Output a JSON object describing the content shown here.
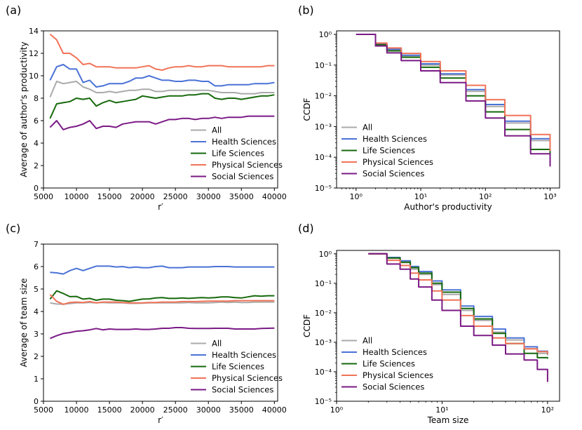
{
  "chart_data": [
    {
      "panel": "(a)",
      "type": "line",
      "xscale": "linear",
      "yscale": "linear",
      "xlabel": "r′",
      "ylabel": "Average of author's productivity",
      "xlim": [
        5000,
        40500
      ],
      "ylim": [
        0,
        14
      ],
      "xticks": [
        5000,
        10000,
        15000,
        20000,
        25000,
        30000,
        35000,
        40000
      ],
      "xtick_labels": [
        "5000",
        "10000",
        "15000",
        "20000",
        "25000",
        "30000",
        "35000",
        "40000"
      ],
      "yticks": [
        0,
        2,
        4,
        6,
        8,
        10,
        12,
        14
      ],
      "ytick_labels": [
        "0",
        "2",
        "4",
        "6",
        "8",
        "10",
        "12",
        "14"
      ],
      "legend_position": "lower-right",
      "x": [
        6000,
        7000,
        8000,
        9000,
        10000,
        11000,
        12000,
        13000,
        14000,
        15000,
        16000,
        17000,
        18000,
        19000,
        20000,
        21000,
        22000,
        23000,
        24000,
        25000,
        26000,
        27000,
        28000,
        29000,
        30000,
        31000,
        32000,
        33000,
        34000,
        35000,
        36000,
        37000,
        38000,
        39000,
        40000
      ],
      "series": [
        {
          "name": "All",
          "color": "#aaaaaa",
          "values": [
            8.1,
            9.5,
            9.3,
            9.4,
            9.5,
            9.0,
            8.8,
            8.5,
            8.5,
            8.6,
            8.5,
            8.6,
            8.7,
            8.7,
            8.8,
            8.8,
            8.6,
            8.6,
            8.7,
            8.7,
            8.7,
            8.7,
            8.7,
            8.7,
            8.7,
            8.6,
            8.5,
            8.5,
            8.5,
            8.4,
            8.4,
            8.4,
            8.5,
            8.5,
            8.5
          ]
        },
        {
          "name": "Health Sciences",
          "color": "#4a72d6",
          "values": [
            9.6,
            10.8,
            11.0,
            10.6,
            10.6,
            9.4,
            9.6,
            9.0,
            9.1,
            9.3,
            9.3,
            9.3,
            9.5,
            9.8,
            9.8,
            10.0,
            9.8,
            9.6,
            9.6,
            9.5,
            9.5,
            9.6,
            9.6,
            9.5,
            9.5,
            9.1,
            9.1,
            9.2,
            9.2,
            9.2,
            9.2,
            9.3,
            9.3,
            9.3,
            9.4
          ]
        },
        {
          "name": "Life Sciences",
          "color": "#16690c",
          "values": [
            6.2,
            7.5,
            7.6,
            7.7,
            8.0,
            7.9,
            8.0,
            7.3,
            7.6,
            7.8,
            7.6,
            7.7,
            7.8,
            7.9,
            8.2,
            8.1,
            8.0,
            8.1,
            8.2,
            8.2,
            8.2,
            8.3,
            8.3,
            8.4,
            8.4,
            8.0,
            7.9,
            8.0,
            8.0,
            7.9,
            8.0,
            8.1,
            8.2,
            8.2,
            8.3
          ]
        },
        {
          "name": "Physical Sciences",
          "color": "#f07358",
          "values": [
            13.7,
            13.2,
            12.0,
            12.0,
            11.6,
            11.0,
            11.1,
            10.8,
            10.8,
            10.8,
            10.7,
            10.7,
            10.7,
            10.7,
            10.8,
            10.9,
            10.6,
            10.5,
            10.7,
            10.8,
            10.8,
            10.9,
            10.8,
            10.8,
            10.9,
            10.9,
            10.9,
            10.8,
            10.8,
            10.8,
            10.8,
            10.8,
            10.8,
            10.9,
            10.9
          ]
        },
        {
          "name": "Social Sciences",
          "color": "#7b1a85",
          "values": [
            5.4,
            6.0,
            5.2,
            5.4,
            5.5,
            5.7,
            6.0,
            5.3,
            5.5,
            5.5,
            5.4,
            5.7,
            5.8,
            5.9,
            5.9,
            5.9,
            5.7,
            5.9,
            6.1,
            6.1,
            6.2,
            6.2,
            6.1,
            6.2,
            6.2,
            6.3,
            6.2,
            6.3,
            6.3,
            6.3,
            6.4,
            6.4,
            6.4,
            6.4,
            6.4
          ]
        }
      ]
    },
    {
      "panel": "(b)",
      "type": "line",
      "step": true,
      "xscale": "log",
      "yscale": "log",
      "xlabel": "Author's productivity",
      "ylabel": "CCDF",
      "xlim": [
        0.5,
        1400
      ],
      "ylim": [
        1e-05,
        1.3
      ],
      "xticks": [
        1,
        10,
        100,
        1000
      ],
      "xtick_labels": [
        "10⁰",
        "10¹",
        "10²",
        "10³"
      ],
      "yticks": [
        1e-05,
        0.0001,
        0.001,
        0.01,
        0.1,
        1
      ],
      "ytick_labels": [
        "10⁻⁵",
        "10⁻⁴",
        "10⁻³",
        "10⁻²",
        "10⁻¹",
        "10⁰"
      ],
      "legend_position": "lower-left",
      "x": [
        1,
        2,
        3,
        5,
        10,
        20,
        50,
        100,
        200,
        500,
        1000
      ],
      "series": [
        {
          "name": "All",
          "color": "#aaaaaa",
          "values": [
            1.0,
            0.48,
            0.31,
            0.2,
            0.1,
            0.048,
            0.014,
            0.0045,
            0.0013,
            0.00035,
            0.000105
          ]
        },
        {
          "name": "Health Sciences",
          "color": "#4a72d6",
          "values": [
            1.0,
            0.5,
            0.33,
            0.21,
            0.11,
            0.052,
            0.016,
            0.0052,
            0.0015,
            0.0004,
            0.000125
          ]
        },
        {
          "name": "Life Sciences",
          "color": "#16690c",
          "values": [
            1.0,
            0.46,
            0.29,
            0.18,
            0.085,
            0.038,
            0.01,
            0.003,
            0.0008,
            0.00018,
            5.5e-05
          ]
        },
        {
          "name": "Physical Sciences",
          "color": "#f07358",
          "values": [
            1.0,
            0.52,
            0.36,
            0.24,
            0.13,
            0.065,
            0.022,
            0.0075,
            0.0023,
            0.00055,
            0.00016
          ]
        },
        {
          "name": "Social Sciences",
          "color": "#7b1a85",
          "values": [
            1.0,
            0.42,
            0.25,
            0.14,
            0.065,
            0.027,
            0.0068,
            0.0019,
            0.0005,
            0.00013,
            5e-05
          ]
        }
      ]
    },
    {
      "panel": "(c)",
      "type": "line",
      "xscale": "linear",
      "yscale": "linear",
      "xlabel": "r′",
      "ylabel": "Average of team size",
      "xlim": [
        5000,
        40500
      ],
      "ylim": [
        0,
        7
      ],
      "xticks": [
        5000,
        10000,
        15000,
        20000,
        25000,
        30000,
        35000,
        40000
      ],
      "xtick_labels": [
        "5000",
        "10000",
        "15000",
        "20000",
        "25000",
        "30000",
        "35000",
        "40000"
      ],
      "yticks": [
        0,
        1,
        2,
        3,
        4,
        5,
        6,
        7
      ],
      "ytick_labels": [
        "0",
        "1",
        "2",
        "3",
        "4",
        "5",
        "6",
        "7"
      ],
      "legend_position": "lower-right",
      "x": [
        6000,
        7000,
        8000,
        9000,
        10000,
        11000,
        12000,
        13000,
        14000,
        15000,
        16000,
        17000,
        18000,
        19000,
        20000,
        21000,
        22000,
        23000,
        24000,
        25000,
        26000,
        27000,
        28000,
        29000,
        30000,
        31000,
        32000,
        33000,
        34000,
        35000,
        36000,
        37000,
        38000,
        39000,
        40000
      ],
      "series": [
        {
          "name": "All",
          "color": "#aaaaaa",
          "values": [
            4.38,
            4.33,
            4.32,
            4.35,
            4.38,
            4.38,
            4.4,
            4.38,
            4.4,
            4.38,
            4.38,
            4.38,
            4.36,
            4.36,
            4.37,
            4.38,
            4.38,
            4.38,
            4.38,
            4.38,
            4.38,
            4.4,
            4.38,
            4.38,
            4.38,
            4.4,
            4.42,
            4.4,
            4.42,
            4.4,
            4.4,
            4.42,
            4.42,
            4.42,
            4.42
          ]
        },
        {
          "name": "Health Sciences",
          "color": "#4a72d6",
          "values": [
            5.74,
            5.72,
            5.67,
            5.82,
            5.92,
            5.82,
            5.92,
            6.02,
            6.02,
            6.02,
            5.98,
            6.0,
            5.95,
            5.98,
            5.95,
            5.95,
            6.0,
            6.02,
            5.95,
            5.95,
            5.95,
            5.98,
            5.98,
            5.98,
            5.98,
            6.0,
            6.0,
            6.0,
            5.98,
            5.98,
            5.98,
            5.98,
            5.98,
            5.98,
            5.98
          ]
        },
        {
          "name": "Life Sciences",
          "color": "#16690c",
          "values": [
            4.55,
            4.92,
            4.8,
            4.66,
            4.67,
            4.55,
            4.58,
            4.5,
            4.55,
            4.55,
            4.5,
            4.48,
            4.45,
            4.5,
            4.55,
            4.56,
            4.6,
            4.62,
            4.58,
            4.58,
            4.6,
            4.58,
            4.6,
            4.62,
            4.6,
            4.62,
            4.65,
            4.65,
            4.62,
            4.6,
            4.65,
            4.7,
            4.68,
            4.7,
            4.7
          ]
        },
        {
          "name": "Physical Sciences",
          "color": "#f07358",
          "values": [
            4.75,
            4.45,
            4.32,
            4.4,
            4.42,
            4.4,
            4.44,
            4.38,
            4.42,
            4.42,
            4.42,
            4.4,
            4.38,
            4.38,
            4.38,
            4.4,
            4.4,
            4.42,
            4.42,
            4.42,
            4.44,
            4.44,
            4.44,
            4.45,
            4.46,
            4.46,
            4.46,
            4.46,
            4.48,
            4.48,
            4.48,
            4.48,
            4.48,
            4.48,
            4.48
          ]
        },
        {
          "name": "Social Sciences",
          "color": "#7b1a85",
          "values": [
            2.8,
            2.92,
            3.02,
            3.06,
            3.12,
            3.14,
            3.18,
            3.24,
            3.18,
            3.22,
            3.2,
            3.2,
            3.2,
            3.22,
            3.2,
            3.2,
            3.22,
            3.25,
            3.25,
            3.28,
            3.28,
            3.25,
            3.24,
            3.24,
            3.24,
            3.25,
            3.25,
            3.25,
            3.22,
            3.22,
            3.22,
            3.22,
            3.24,
            3.25,
            3.26
          ]
        }
      ]
    },
    {
      "panel": "(d)",
      "type": "line",
      "step": true,
      "xscale": "log",
      "yscale": "log",
      "xlabel": "Team size",
      "ylabel": "CCDF",
      "xlim": [
        1,
        130
      ],
      "ylim": [
        1e-05,
        1.3
      ],
      "xticks": [
        1,
        10,
        100
      ],
      "xtick_labels": [
        "10⁰",
        "10¹",
        "10²"
      ],
      "yticks": [
        1e-05,
        0.0001,
        0.001,
        0.01,
        0.1,
        1
      ],
      "ytick_labels": [
        "10⁻⁵",
        "10⁻⁴",
        "10⁻³",
        "10⁻²",
        "10⁻¹",
        "10⁰"
      ],
      "legend_position": "lower-left",
      "x": [
        2,
        3,
        4,
        5,
        6,
        8,
        10,
        15,
        20,
        30,
        40,
        60,
        80,
        100
      ],
      "series": [
        {
          "name": "All",
          "color": "#aaaaaa",
          "values": [
            1.0,
            0.7,
            0.5,
            0.3,
            0.2,
            0.09,
            0.042,
            0.012,
            0.0055,
            0.0022,
            0.0012,
            0.0006,
            0.00042,
            0.00036
          ]
        },
        {
          "name": "Health Sciences",
          "color": "#4a72d6",
          "values": [
            1.0,
            0.75,
            0.58,
            0.37,
            0.25,
            0.12,
            0.06,
            0.017,
            0.0075,
            0.0028,
            0.0014,
            0.0007,
            0.0005,
            0.0004
          ]
        },
        {
          "name": "Life Sciences",
          "color": "#16690c",
          "values": [
            1.0,
            0.72,
            0.52,
            0.34,
            0.22,
            0.1,
            0.05,
            0.014,
            0.0062,
            0.002,
            0.0009,
            0.00042,
            0.0003,
            0.00028
          ]
        },
        {
          "name": "Physical Sciences",
          "color": "#f07358",
          "values": [
            1.0,
            0.6,
            0.4,
            0.22,
            0.13,
            0.055,
            0.027,
            0.008,
            0.0035,
            0.0014,
            0.0009,
            0.0006,
            0.00048,
            0.0004
          ]
        },
        {
          "name": "Social Sciences",
          "color": "#7b1a85",
          "values": [
            1.0,
            0.45,
            0.3,
            0.14,
            0.075,
            0.027,
            0.012,
            0.0035,
            0.0017,
            0.0008,
            0.0004,
            0.00025,
            0.00012,
            4.5e-05
          ]
        }
      ]
    }
  ]
}
